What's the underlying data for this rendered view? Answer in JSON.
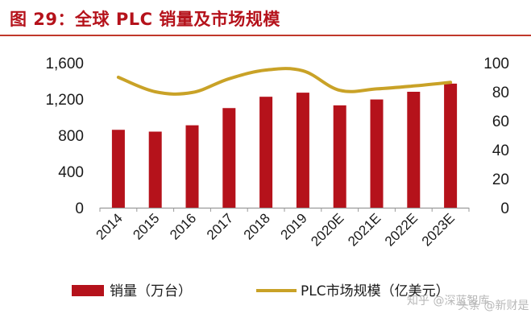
{
  "title": "图 29：全球 PLC 销量及市场规模",
  "chart_data": {
    "type": "bar+line",
    "categories": [
      "2014",
      "2015",
      "2016",
      "2017",
      "2018",
      "2019",
      "2020E",
      "2021E",
      "2022E",
      "2023E"
    ],
    "series": [
      {
        "name": "销量（万台）",
        "type": "bar",
        "axis": "left",
        "values": [
          860,
          840,
          910,
          1100,
          1225,
          1270,
          1130,
          1195,
          1280,
          1370
        ]
      },
      {
        "name": "PLC市场规模（亿美元）",
        "type": "line",
        "axis": "right",
        "values": [
          90,
          80,
          79.5,
          89,
          95,
          94.5,
          81,
          82,
          84,
          86.5
        ]
      }
    ],
    "y_left": {
      "min": 0,
      "max": 1600,
      "ticks": [
        0,
        400,
        800,
        1200,
        1600
      ],
      "tick_labels": [
        "0",
        "400",
        "800",
        "1,200",
        "1,600"
      ]
    },
    "y_right": {
      "min": 0,
      "max": 100,
      "ticks": [
        0,
        20,
        40,
        60,
        80,
        100
      ]
    },
    "legend_position": "bottom",
    "colors": {
      "bar": "#b5121b",
      "line": "#c9a227",
      "axis": "#9a9a9a"
    }
  },
  "watermark": {
    "line1": "知乎 @深蓝智库",
    "line2": "头条 @新财是"
  }
}
